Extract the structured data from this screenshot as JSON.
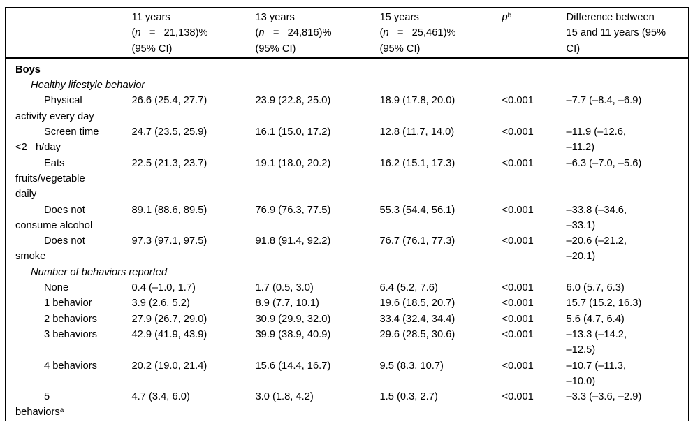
{
  "colors": {
    "text": "#000000",
    "border": "#000000",
    "background": "#ffffff"
  },
  "table": {
    "head": {
      "age11": {
        "l1": "11 years",
        "open": "(",
        "var": "n",
        "eq": "   =   ",
        "val": "21,138)%",
        "l3": "(95% CI)"
      },
      "age13": {
        "l1": "13 years",
        "open": "(",
        "var": "n",
        "eq": "   =   ",
        "val": "24,816)%",
        "l3": "(95% CI)"
      },
      "age15": {
        "l1": "15 years",
        "open": "(",
        "var": "n",
        "eq": "   =   ",
        "val": "25,461)%",
        "l3": "(95% CI)"
      },
      "p": {
        "var": "p",
        "sup": "b"
      },
      "diff": {
        "l1": "Difference between",
        "l2": "15 and 11 years (95%",
        "l3": "CI)"
      }
    },
    "rows": [
      {
        "type": "section",
        "l1": "Boys"
      },
      {
        "type": "subsection",
        "l1": "Healthy lifestyle behavior"
      },
      {
        "type": "data",
        "l1": "Physical",
        "l2": "activity every day",
        "c1": "26.6 (25.4, 27.7)",
        "c2": "23.9 (22.8, 25.0)",
        "c3": "18.9 (17.8, 20.0)",
        "p": "<0.001",
        "d1": "–7.7 (–8.4, –6.9)"
      },
      {
        "type": "data",
        "l1": "Screen time",
        "l2": "<2   h/day",
        "c1": "24.7 (23.5, 25.9)",
        "c2": "16.1 (15.0, 17.2)",
        "c3": "12.8 (11.7, 14.0)",
        "p": "<0.001",
        "d1": "–11.9 (–12.6,",
        "d2": "–11.2)"
      },
      {
        "type": "data",
        "l1": "Eats",
        "l2": "fruits/vegetable",
        "l3": "daily",
        "c1": "22.5 (21.3, 23.7)",
        "c2": "19.1 (18.0, 20.2)",
        "c3": "16.2 (15.1, 17.3)",
        "p": "<0.001",
        "d1": "–6.3 (–7.0, –5.6)"
      },
      {
        "type": "data",
        "l1": "Does not",
        "l2": "consume alcohol",
        "c1": "89.1 (88.6, 89.5)",
        "c2": "76.9 (76.3, 77.5)",
        "c3": "55.3 (54.4, 56.1)",
        "p": "<0.001",
        "d1": "–33.8 (–34.6,",
        "d2": "–33.1)"
      },
      {
        "type": "data",
        "l1": "Does not",
        "l2": "smoke",
        "c1": "97.3 (97.1, 97.5)",
        "c2": "91.8 (91.4, 92.2)",
        "c3": "76.7 (76.1, 77.3)",
        "p": "<0.001",
        "d1": "–20.6 (–21.2,",
        "d2": "–20.1)"
      },
      {
        "type": "subsection",
        "l1": "Number of behaviors reported"
      },
      {
        "type": "data",
        "l1": "None",
        "c1": "0.4 (–1.0, 1.7)",
        "c2": "1.7 (0.5, 3.0)",
        "c3": "6.4 (5.2, 7.6)",
        "p": "<0.001",
        "d1": "6.0 (5.7, 6.3)"
      },
      {
        "type": "data",
        "l1": "1 behavior",
        "c1": "3.9 (2.6, 5.2)",
        "c2": "8.9 (7.7, 10.1)",
        "c3": "19.6 (18.5, 20.7)",
        "p": "<0.001",
        "d1": "15.7 (15.2, 16.3)"
      },
      {
        "type": "data",
        "l1": "2 behaviors",
        "c1": "27.9 (26.7, 29.0)",
        "c2": "30.9 (29.9, 32.0)",
        "c3": "33.4 (32.4, 34.4)",
        "p": "<0.001",
        "d1": "5.6 (4.7, 6.4)"
      },
      {
        "type": "data",
        "l1": "3 behaviors",
        "c1": "42.9 (41.9, 43.9)",
        "c2": "39.9 (38.9, 40.9)",
        "c3": "29.6 (28.5, 30.6)",
        "p": "<0.001",
        "d1": "–13.3 (–14.2,",
        "d2": "–12.5)"
      },
      {
        "type": "data",
        "l1": "4 behaviors",
        "c1": "20.2 (19.0, 21.4)",
        "c2": "15.6 (14.4, 16.7)",
        "c3": "9.5 (8.3, 10.7)",
        "p": "<0.001",
        "d1": "–10.7 (–11.3,",
        "d2": "–10.0)"
      },
      {
        "type": "data",
        "l1": "5",
        "l2": "behaviors",
        "l2_sup": "a",
        "c1": "4.7 (3.4, 6.0)",
        "c2": "3.0 (1.8, 4.2)",
        "c3": "1.5 (0.3, 2.7)",
        "p": "<0.001",
        "d1": "–3.3 (–3.6, –2.9)"
      }
    ]
  }
}
